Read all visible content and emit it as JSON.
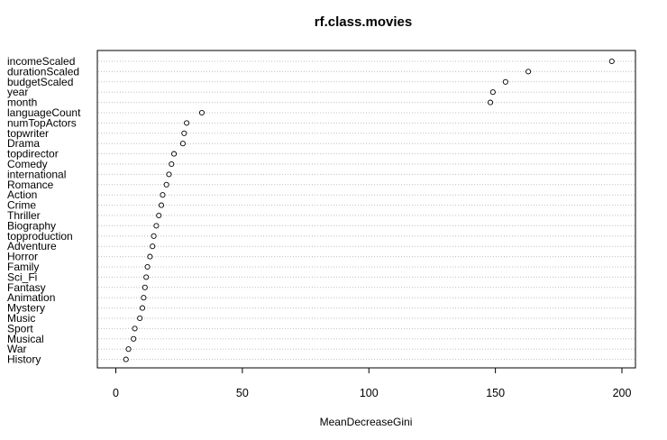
{
  "chart_data": {
    "type": "scatter",
    "title": "rf.class.movies",
    "xlabel": "MeanDecreaseGini",
    "ylabel": "",
    "xlim": [
      0,
      200
    ],
    "xticks": [
      "0",
      "50",
      "100",
      "150",
      "200"
    ],
    "grid": "dotted horizontal guide lines",
    "points": [
      {
        "label": "incomeScaled",
        "value": 196
      },
      {
        "label": "durationScaled",
        "value": 163
      },
      {
        "label": "budgetScaled",
        "value": 154
      },
      {
        "label": "year",
        "value": 149
      },
      {
        "label": "month",
        "value": 148
      },
      {
        "label": "languageCount",
        "value": 34
      },
      {
        "label": "numTopActors",
        "value": 28
      },
      {
        "label": "topwriter",
        "value": 27
      },
      {
        "label": "Drama",
        "value": 26.5
      },
      {
        "label": "topdirector",
        "value": 23
      },
      {
        "label": "Comedy",
        "value": 22
      },
      {
        "label": "international",
        "value": 21
      },
      {
        "label": "Romance",
        "value": 20
      },
      {
        "label": "Action",
        "value": 18.5
      },
      {
        "label": "Crime",
        "value": 18
      },
      {
        "label": "Thriller",
        "value": 17
      },
      {
        "label": "Biography",
        "value": 16
      },
      {
        "label": "topproduction",
        "value": 15
      },
      {
        "label": "Adventure",
        "value": 14.5
      },
      {
        "label": "Horror",
        "value": 13.5
      },
      {
        "label": "Family",
        "value": 12.5
      },
      {
        "label": "Sci_Fi",
        "value": 12
      },
      {
        "label": "Fantasy",
        "value": 11.5
      },
      {
        "label": "Animation",
        "value": 11
      },
      {
        "label": "Mystery",
        "value": 10.5
      },
      {
        "label": "Music",
        "value": 9.5
      },
      {
        "label": "Sport",
        "value": 7.5
      },
      {
        "label": "Musical",
        "value": 7
      },
      {
        "label": "War",
        "value": 5
      },
      {
        "label": "History",
        "value": 4
      }
    ]
  }
}
